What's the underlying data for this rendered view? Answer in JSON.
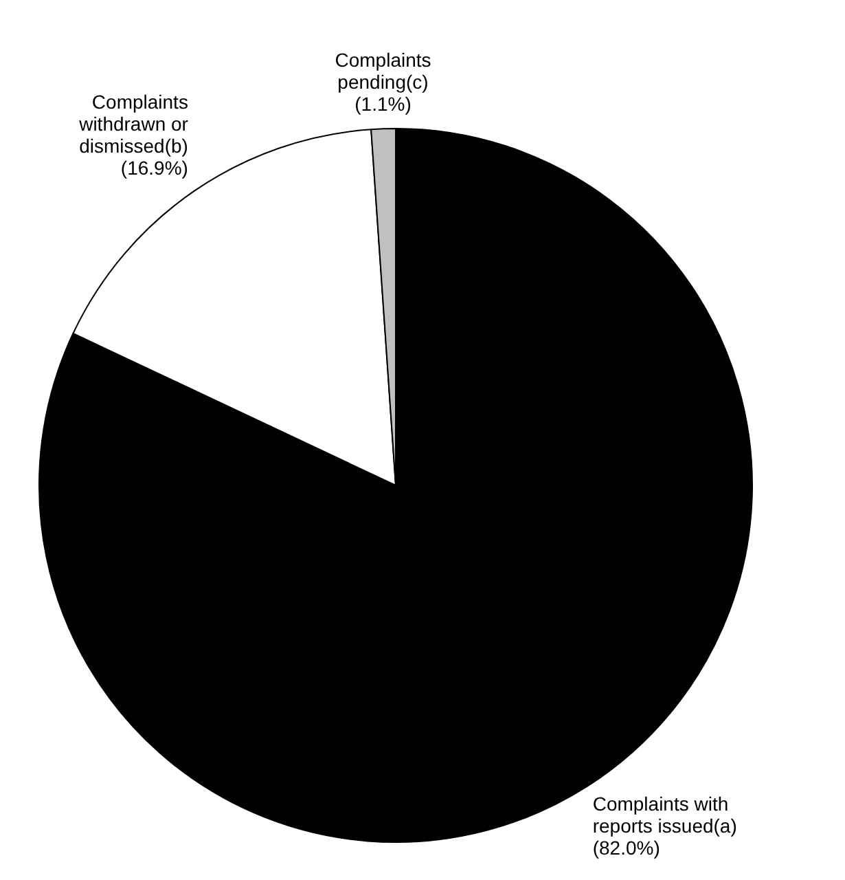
{
  "chart_data": {
    "type": "pie",
    "categories": [
      "Complaints with reports issued(a)",
      "Complaints withdrawn or dismissed(b)",
      "Complaints pending(c)"
    ],
    "values": [
      82.0,
      16.9,
      1.1
    ],
    "value_labels": [
      "(82.0%)",
      "(16.9%)",
      "(1.1%)"
    ],
    "colors": [
      "#000000",
      "#ffffff",
      "#c0c0c0"
    ],
    "legend": false
  }
}
